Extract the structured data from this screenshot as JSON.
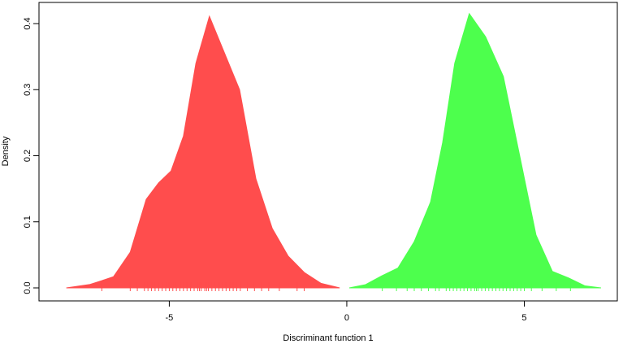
{
  "chart_data": {
    "type": "density",
    "xlabel": "Discriminant function 1",
    "ylabel": "Density",
    "xlim": [
      -8.67,
      7.62
    ],
    "ylim": [
      -0.0197,
      0.432
    ],
    "xticks": [
      -5,
      0,
      5
    ],
    "yticks": [
      {
        "value": 0,
        "label": "0.0"
      },
      0.1,
      0.2,
      0.3,
      0.4
    ],
    "grid": false,
    "series": [
      {
        "color": "#ff4d4d",
        "x": [
          -7.9,
          -7.25,
          -6.9,
          -6.57,
          -6.1,
          -5.65,
          -5.3,
          -4.95,
          -4.6,
          -4.25,
          -3.87,
          -3.48,
          -3.02,
          -2.56,
          -2.1,
          -1.65,
          -1.19,
          -0.73,
          -0.2
        ],
        "values": [
          0,
          0.005,
          0.011,
          0.017,
          0.054,
          0.134,
          0.159,
          0.177,
          0.23,
          0.34,
          0.411,
          0.36,
          0.3,
          0.165,
          0.09,
          0.048,
          0.023,
          0.007,
          0
        ],
        "rug": [
          -6.9,
          -6.1,
          -5.9,
          -5.7,
          -5.6,
          -5.5,
          -5.4,
          -5.3,
          -5.2,
          -5.1,
          -5.0,
          -4.9,
          -4.8,
          -4.7,
          -4.6,
          -4.5,
          -4.4,
          -4.3,
          -4.2,
          -4.15,
          -4.1,
          -4.0,
          -3.95,
          -3.9,
          -3.8,
          -3.7,
          -3.6,
          -3.5,
          -3.4,
          -3.3,
          -3.2,
          -3.1,
          -3.0,
          -2.8,
          -2.6,
          -2.4,
          -2.2,
          -1.9,
          -1.4,
          -1.2
        ]
      },
      {
        "color": "#4dff4d",
        "x": [
          0.07,
          0.53,
          0.98,
          1.44,
          1.9,
          2.36,
          2.7,
          3.04,
          3.45,
          3.91,
          4.41,
          4.87,
          5.33,
          5.79,
          6.25,
          6.71,
          7.16
        ],
        "values": [
          0,
          0.005,
          0.018,
          0.03,
          0.07,
          0.13,
          0.22,
          0.34,
          0.415,
          0.38,
          0.32,
          0.2,
          0.08,
          0.025,
          0.015,
          0.003,
          0
        ],
        "rug": [
          1.0,
          1.4,
          1.7,
          1.9,
          2.1,
          2.3,
          2.5,
          2.6,
          2.8,
          2.9,
          3.0,
          3.1,
          3.2,
          3.3,
          3.4,
          3.5,
          3.6,
          3.65,
          3.7,
          3.8,
          3.9,
          4.0,
          4.1,
          4.2,
          4.3,
          4.4,
          4.5,
          4.6,
          4.7,
          4.8,
          4.9,
          5.0,
          5.2,
          5.5,
          5.9,
          6.3
        ]
      }
    ]
  }
}
